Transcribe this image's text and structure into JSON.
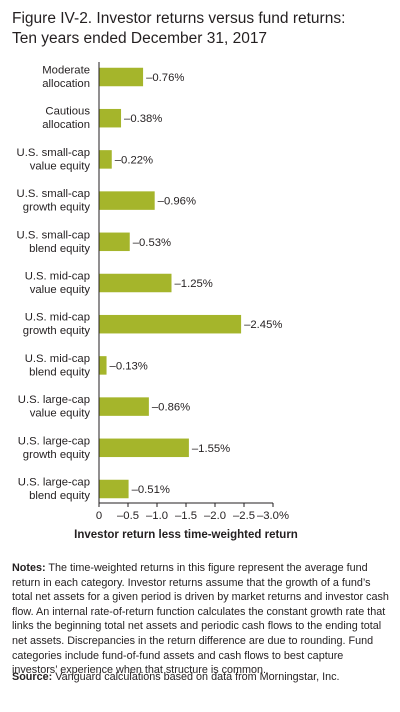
{
  "title_line1": "Figure IV-2. Investor returns versus fund returns:",
  "title_line2": "Ten years ended December 31, 2017",
  "chart_data": {
    "type": "bar",
    "orientation": "horizontal",
    "categories": [
      [
        "Moderate",
        "allocation"
      ],
      [
        "Cautious",
        "allocation"
      ],
      [
        "U.S. small-cap",
        "value equity"
      ],
      [
        "U.S. small-cap",
        "growth equity"
      ],
      [
        "U.S. small-cap",
        "blend equity"
      ],
      [
        "U.S. mid-cap",
        "value equity"
      ],
      [
        "U.S. mid-cap",
        "growth equity"
      ],
      [
        "U.S. mid-cap",
        "blend equity"
      ],
      [
        "U.S. large-cap",
        "value equity"
      ],
      [
        "U.S. large-cap",
        "growth equity"
      ],
      [
        "U.S. large-cap",
        "blend equity"
      ]
    ],
    "values": [
      -0.76,
      -0.38,
      -0.22,
      -0.96,
      -0.53,
      -1.25,
      -2.45,
      -0.13,
      -0.86,
      -1.55,
      -0.51
    ],
    "value_labels": [
      "–0.76%",
      "–0.38%",
      "–0.22%",
      "–0.96%",
      "–0.53%",
      "–1.25%",
      "–2.45%",
      "–0.13%",
      "–0.86%",
      "–1.55%",
      "–0.51%"
    ],
    "xticks": [
      0,
      -0.5,
      -1.0,
      -1.5,
      -2.0,
      -2.5,
      -3.0
    ],
    "xtick_labels": [
      "0",
      "–0.5",
      "–1.0",
      "–1.5",
      "–2.0",
      "–2.5",
      "–3.0%"
    ],
    "xlim": [
      0,
      -3.0
    ],
    "xlabel": "Investor return less time-weighted return",
    "ylabel": "",
    "grid": false,
    "bar_color": "#a5b52b"
  },
  "notes": {
    "label": "Notes:",
    "text": " The time-weighted returns in this figure represent the average fund return in each category. Investor returns assume that the growth of a fund’s total net assets for a given period is driven by market returns and investor cash flow. An internal rate-of-return function calculates the constant growth rate that links the beginning total net assets and periodic cash flows to the ending total net assets. Discrepancies in the return difference are due to rounding. Fund categories include fund-of-fund assets and cash flows to best capture investors’ experience when that structure is common."
  },
  "source": {
    "label": "Source:",
    "text": " Vanguard calculations based on data from Morningstar, Inc."
  }
}
